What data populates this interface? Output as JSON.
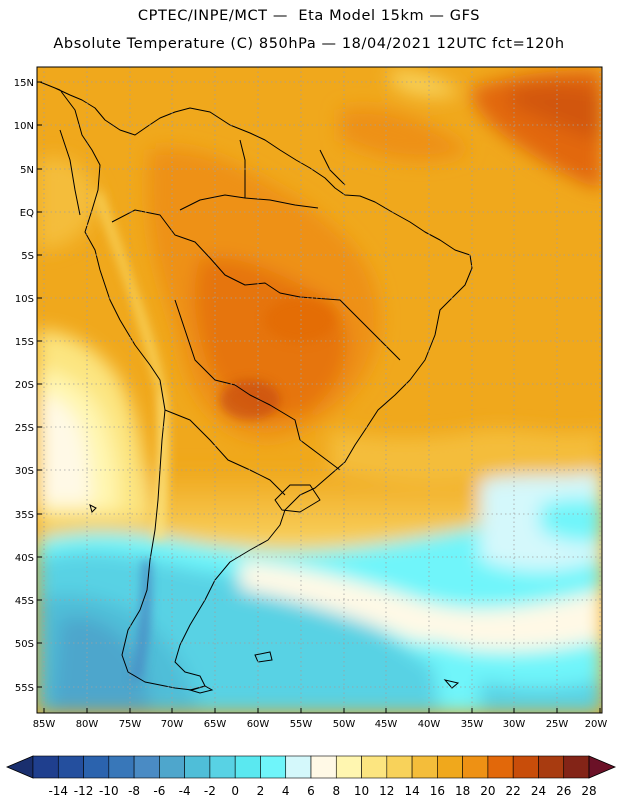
{
  "header": {
    "line1": "CPTEC/INPE/MCT —  Eta Model 15km — GFS",
    "line2": "Absolute Temperature (C) 850hPa — 18/04/2021 12UTC fct=120h"
  },
  "map": {
    "lat_labels": [
      "15N",
      "10N",
      "5N",
      "EQ",
      "5S",
      "10S",
      "15S",
      "20S",
      "25S",
      "30S",
      "35S",
      "40S",
      "45S",
      "50S",
      "55S"
    ],
    "lon_labels": [
      "85W",
      "80W",
      "75W",
      "70W",
      "65W",
      "60W",
      "55W",
      "50W",
      "45W",
      "40W",
      "35W",
      "30W",
      "25W",
      "20W"
    ]
  },
  "colorbar": {
    "labels": [
      "-14",
      "-12",
      "-10",
      "-8",
      "-6",
      "-4",
      "-2",
      "0",
      "2",
      "4",
      "6",
      "8",
      "10",
      "12",
      "14",
      "16",
      "18",
      "20",
      "22",
      "24",
      "26",
      "28"
    ],
    "colors": [
      "#1f3f8e",
      "#244f9e",
      "#2b63ae",
      "#3877b9",
      "#4a8bc4",
      "#4ea6cc",
      "#4fbed8",
      "#58d2e4",
      "#5ae8f0",
      "#6ff5fa",
      "#d4f8fb",
      "#fff9e6",
      "#fff6b0",
      "#fce580",
      "#f8d25a",
      "#f4bd3a",
      "#f0a81c",
      "#ee9114",
      "#e2680a",
      "#c84d0a",
      "#a83b10",
      "#832417"
    ],
    "low_arrow_color": "#1a2f6e",
    "high_arrow_color": "#6b1127"
  }
}
